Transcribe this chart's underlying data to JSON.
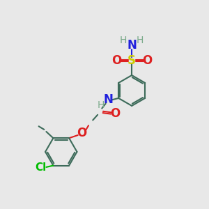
{
  "background_color": "#e8e8e8",
  "figsize": [
    3.0,
    3.0
  ],
  "dpi": 100,
  "colors": {
    "bond": "#3d6b5a",
    "nitrogen": "#2020dd",
    "oxygen": "#dd2020",
    "sulfur": "#cccc00",
    "chlorine": "#00bb00",
    "hydrogen": "#7aaa8a"
  },
  "lw": 1.5,
  "xlim": [
    0,
    3.0
  ],
  "ylim": [
    0,
    3.0
  ]
}
